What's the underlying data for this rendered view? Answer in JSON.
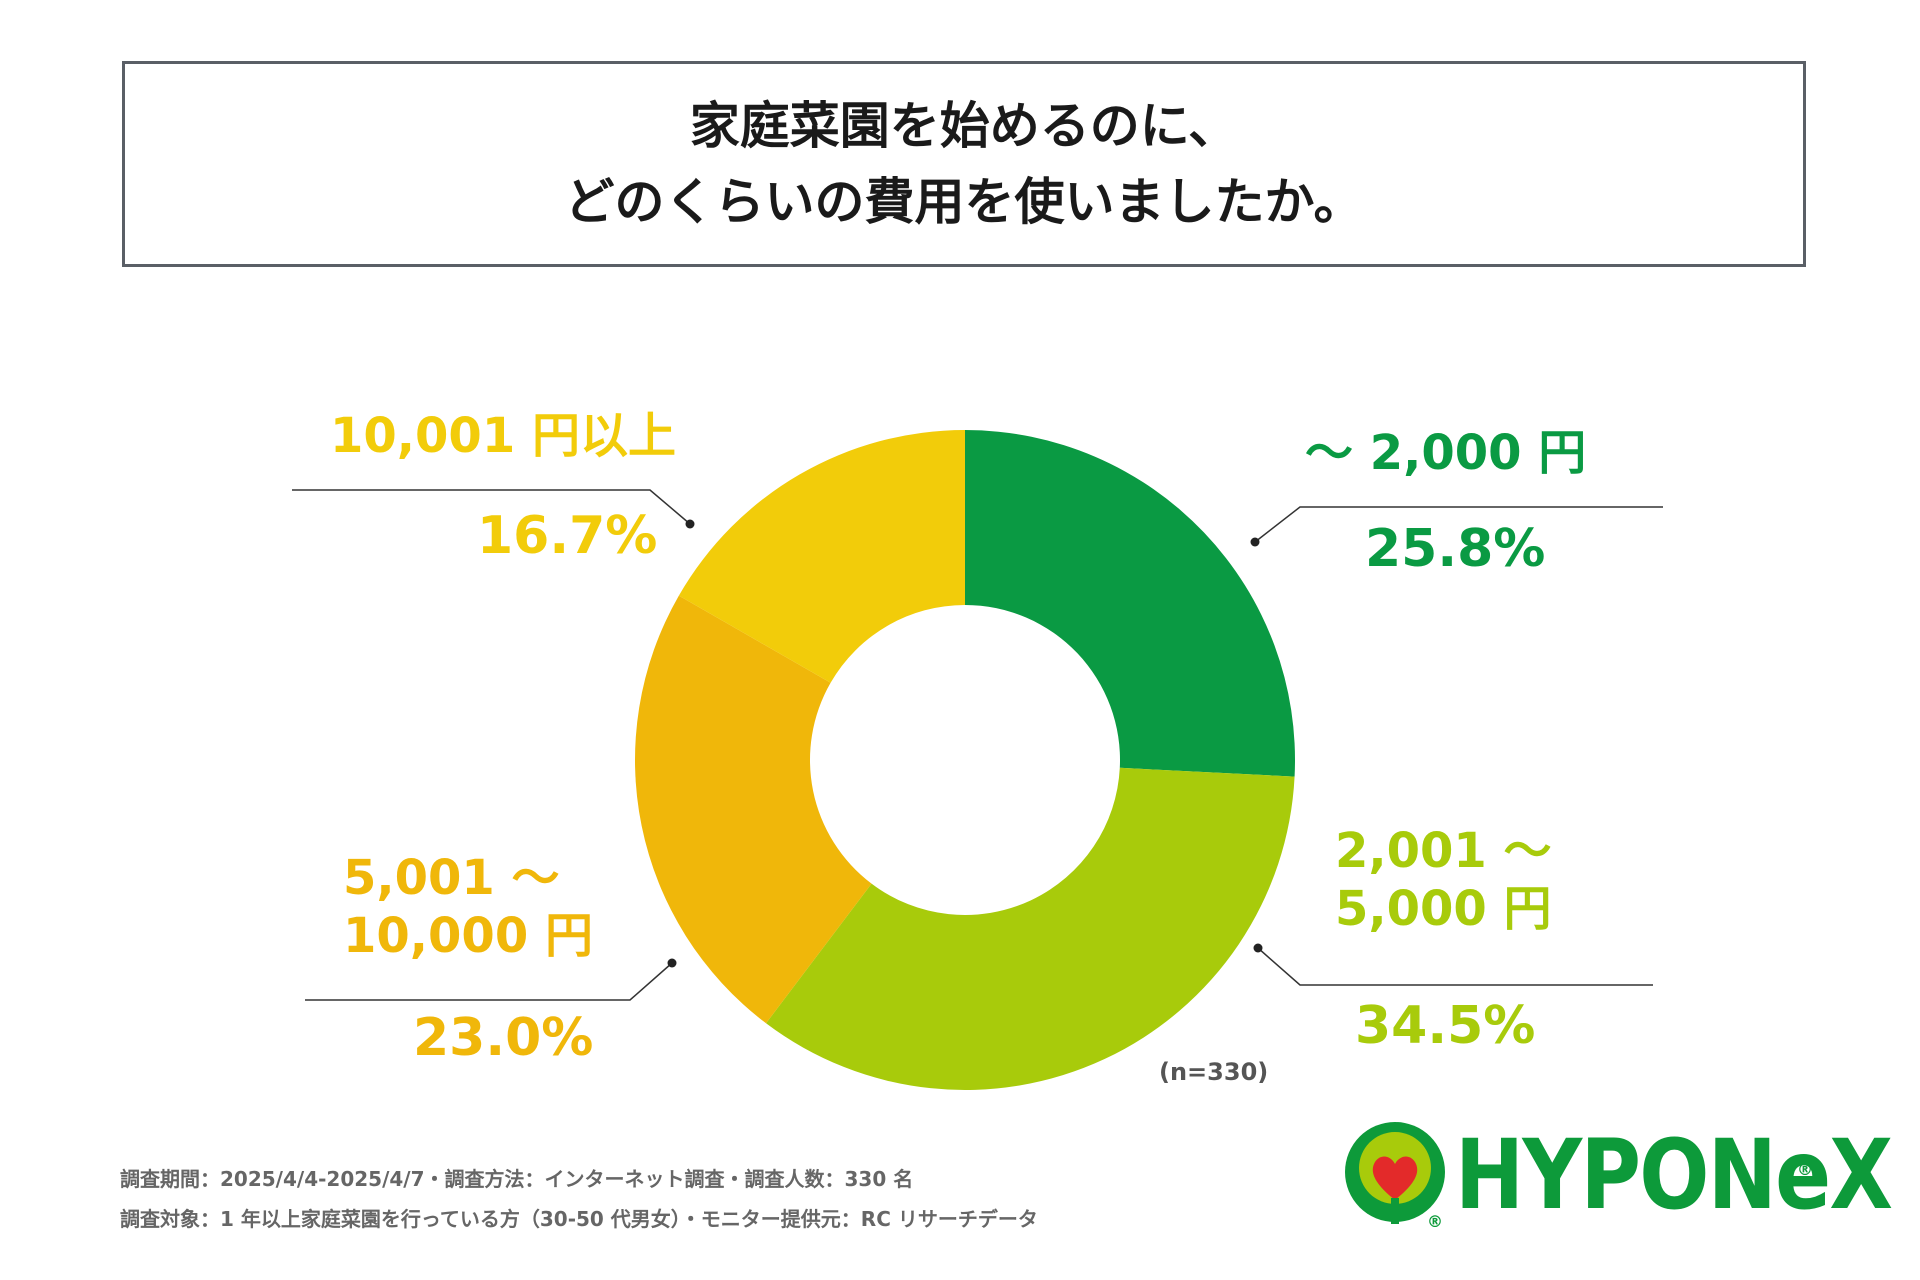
{
  "title": {
    "line1": "家庭菜園を始めるのに、",
    "line2": "どのくらいの費用を使いましたか。"
  },
  "chart_data": {
    "type": "pie",
    "variant": "donut",
    "categories": [
      "～ 2,000 円",
      "2,001 ～ 5,000 円",
      "5,001 ～ 10,000 円",
      "10,001 円以上"
    ],
    "category_lines": [
      [
        "～ 2,000 円"
      ],
      [
        "2,001 ～",
        "5,000 円"
      ],
      [
        "5,001 ～",
        "10,000 円"
      ],
      [
        "10,001 円以上"
      ]
    ],
    "values": [
      25.8,
      34.5,
      23.0,
      16.7
    ],
    "value_labels": [
      "25.8%",
      "34.5%",
      "23.0%",
      "16.7%"
    ],
    "colors": [
      "#0a9a43",
      "#a8cb0b",
      "#f0b70a",
      "#f2cc0a"
    ],
    "note": "(n=330)"
  },
  "footer": {
    "line1": "調査期間：2025/4/4-2025/4/7・調査方法：インターネット調査・調査人数：330 名",
    "line2": "調査対象：1 年以上家庭菜園を行っている方（30-50 代男女）・モニター提供元：RC リサーチデータ"
  },
  "logo": {
    "text": "HYPONeX",
    "reg_mark": "®",
    "color": "#0d9a3a",
    "heart_color": "#e32a2a"
  }
}
